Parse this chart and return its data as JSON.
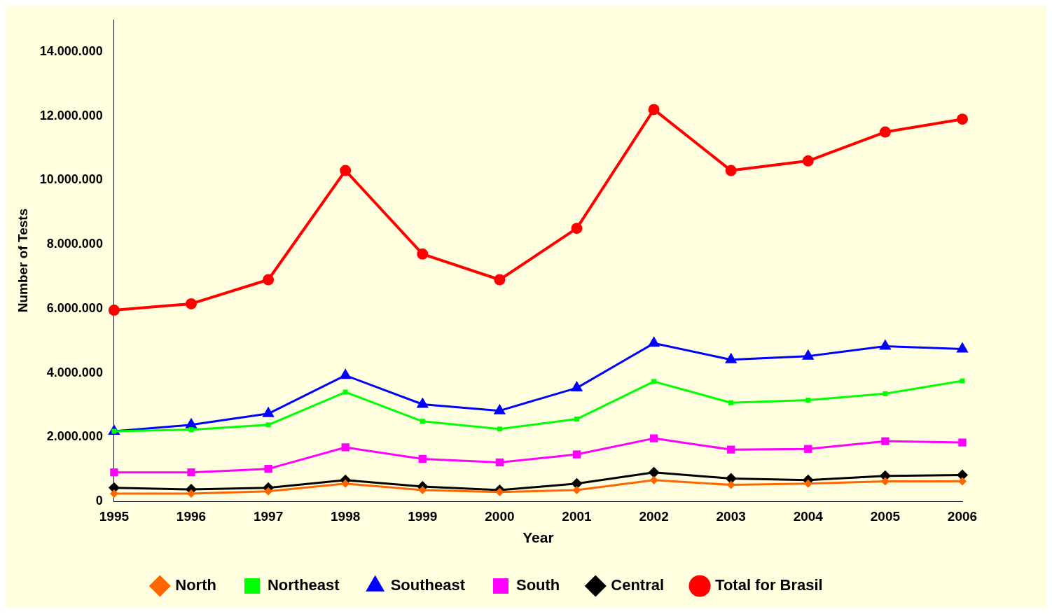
{
  "chart_data": {
    "type": "line",
    "xlabel": "Year",
    "ylabel": "Number of Tests",
    "categories": [
      "1995",
      "1996",
      "1997",
      "1998",
      "1999",
      "2000",
      "2001",
      "2002",
      "2003",
      "2004",
      "2005",
      "2006"
    ],
    "ylim": [
      0,
      15000000
    ],
    "yticks": [
      {
        "value": 0,
        "label": "0"
      },
      {
        "value": 2000000,
        "label": "2.000.000"
      },
      {
        "value": 4000000,
        "label": "4.000.000"
      },
      {
        "value": 6000000,
        "label": "6.000.000"
      },
      {
        "value": 8000000,
        "label": "8.000.000"
      },
      {
        "value": 10000000,
        "label": "10.000.000"
      },
      {
        "value": 12000000,
        "label": "12.000.000"
      },
      {
        "value": 14000000,
        "label": "14.000.000"
      }
    ],
    "grid": false,
    "legend": "bottom",
    "series": [
      {
        "name": "North",
        "color": "#ff6600",
        "marker": "diamond",
        "values": [
          240000,
          240000,
          310000,
          550000,
          350000,
          290000,
          350000,
          660000,
          510000,
          550000,
          620000,
          620000
        ]
      },
      {
        "name": "Northeast",
        "color": "#00ff00",
        "marker": "square",
        "values": [
          2180000,
          2230000,
          2380000,
          3400000,
          2490000,
          2250000,
          2560000,
          3730000,
          3070000,
          3150000,
          3350000,
          3750000
        ]
      },
      {
        "name": "Southeast",
        "color": "#0000ff",
        "marker": "triangle",
        "values": [
          2180000,
          2380000,
          2730000,
          3920000,
          3020000,
          2820000,
          3530000,
          4920000,
          4410000,
          4520000,
          4830000,
          4740000
        ]
      },
      {
        "name": "South",
        "color": "#ff00ff",
        "marker": "square",
        "values": [
          900000,
          900000,
          1010000,
          1680000,
          1320000,
          1210000,
          1460000,
          1960000,
          1610000,
          1630000,
          1870000,
          1830000
        ]
      },
      {
        "name": "Central",
        "color": "#000000",
        "marker": "diamond",
        "values": [
          420000,
          370000,
          420000,
          660000,
          460000,
          350000,
          550000,
          900000,
          710000,
          660000,
          790000,
          820000
        ]
      },
      {
        "name": "Total for Brasil",
        "color": "#ff0000",
        "marker": "circle",
        "values": [
          5950000,
          6150000,
          6900000,
          10300000,
          7700000,
          6900000,
          8500000,
          12200000,
          10300000,
          10600000,
          11500000,
          11900000
        ]
      }
    ]
  }
}
